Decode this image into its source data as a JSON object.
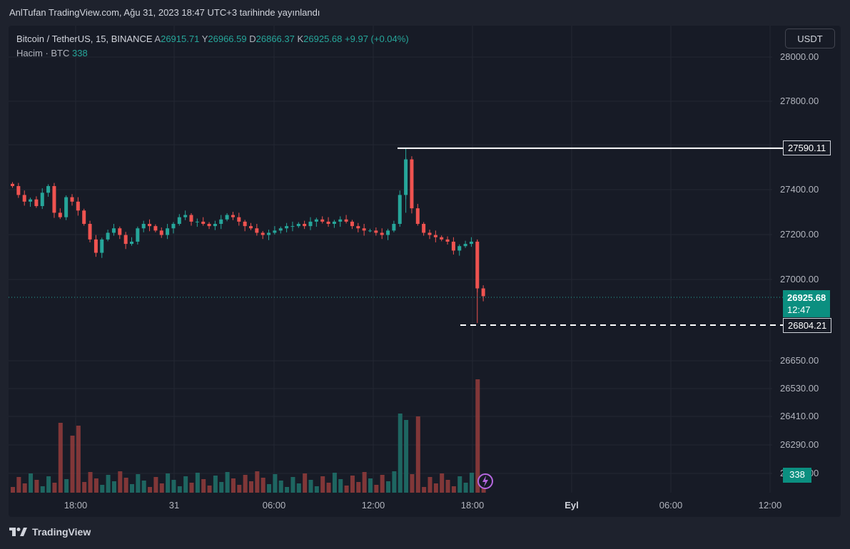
{
  "header": {
    "publish_text": "AnlTufan TradingView.com, Ağu 31, 2023 18:47 UTC+3 tarihinde yayınlandı"
  },
  "legend": {
    "symbol": "Bitcoin / TetherUS, 15, BINANCE",
    "open_label": "A",
    "open": "26915.71",
    "high_label": "Y",
    "high": "26966.59",
    "low_label": "D",
    "low": "26866.37",
    "close_label": "K",
    "close": "26925.68",
    "change": "+9.97 (+0.04%)",
    "volume_label": "Hacim · BTC",
    "volume": "338"
  },
  "currency_button": "USDT",
  "price_axis": [
    "28000.00",
    "27800.00",
    "27400.00",
    "27200.00",
    "27000.00",
    "26650.00",
    "26530.00",
    "26410.00",
    "26290.00",
    "26170.00"
  ],
  "tags": {
    "high_line": "27590.11",
    "current_price": "26925.68",
    "countdown": "12:47",
    "low_line": "26804.21",
    "volume": "338"
  },
  "time_axis": [
    "18:00",
    "31",
    "06:00",
    "12:00",
    "18:00",
    "Eyl",
    "06:00",
    "12:00"
  ],
  "footer": {
    "brand": "TradingView"
  },
  "colors": {
    "up": "#26a69a",
    "down": "#ef5350",
    "background": "#171b26"
  },
  "chart_data": {
    "type": "candlestick",
    "symbol": "BTCUSDT",
    "interval": "15",
    "y_range": [
      26700,
      28050
    ],
    "close_path": [
      27420,
      27380,
      27350,
      27360,
      27330,
      27390,
      27420,
      27300,
      27280,
      27370,
      27350,
      27310,
      27250,
      27180,
      27120,
      27180,
      27210,
      27230,
      27200,
      27160,
      27170,
      27230,
      27250,
      27240,
      27220,
      27200,
      27230,
      27250,
      27280,
      27290,
      27260,
      27260,
      27250,
      27240,
      27250,
      27270,
      27290,
      27280,
      27260,
      27240,
      27230,
      27210,
      27200,
      27210,
      27220,
      27230,
      27240,
      27240,
      27250,
      27240,
      27260,
      27270,
      27260,
      27250,
      27260,
      27270,
      27260,
      27240,
      27230,
      27220,
      27220,
      27210,
      27200,
      27220,
      27250,
      27380,
      27540,
      27320,
      27250,
      27210,
      27200,
      27190,
      27180,
      27170,
      27130,
      27150,
      27160,
      27170,
      26960,
      26925
    ],
    "high": 27590.11,
    "low": 26804.21,
    "last": 26925.68
  }
}
